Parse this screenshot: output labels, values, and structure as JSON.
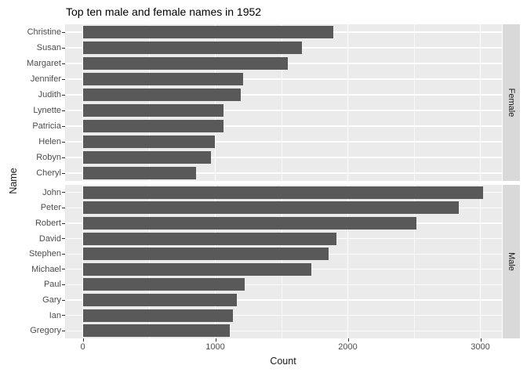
{
  "chart_data": {
    "type": "bar",
    "orientation": "horizontal",
    "title": "Top ten male and female names in 1952",
    "xlabel": "Count",
    "ylabel": "Name",
    "x_ticks": [
      0,
      1000,
      2000,
      3000
    ],
    "x_minor_ticks": [
      500,
      1500,
      2500
    ],
    "xlim": [
      -135,
      3160
    ],
    "grid": "on",
    "legend": "none",
    "facets": [
      {
        "label": "Female",
        "categories": [
          "Christine",
          "Susan",
          "Margaret",
          "Jennifer",
          "Judith",
          "Lynette",
          "Patricia",
          "Helen",
          "Robyn",
          "Cheryl"
        ],
        "values": [
          1890,
          1655,
          1545,
          1210,
          1190,
          1065,
          1060,
          995,
          970,
          855
        ]
      },
      {
        "label": "Male",
        "categories": [
          "John",
          "Peter",
          "Robert",
          "David",
          "Stephen",
          "Michael",
          "Paul",
          "Gary",
          "Ian",
          "Gregory"
        ],
        "values": [
          3020,
          2840,
          2520,
          1915,
          1855,
          1725,
          1220,
          1165,
          1135,
          1110
        ]
      }
    ],
    "colors": {
      "bar": "#595959",
      "panel_bg": "#EBEBEB",
      "strip_bg": "#D9D9D9",
      "gridline": "#FFFFFF",
      "tick_text": "#4D4D4D",
      "axis_title_text": "#1A1A1A",
      "title_text": "#000000",
      "background": "#FFFFFF"
    }
  }
}
